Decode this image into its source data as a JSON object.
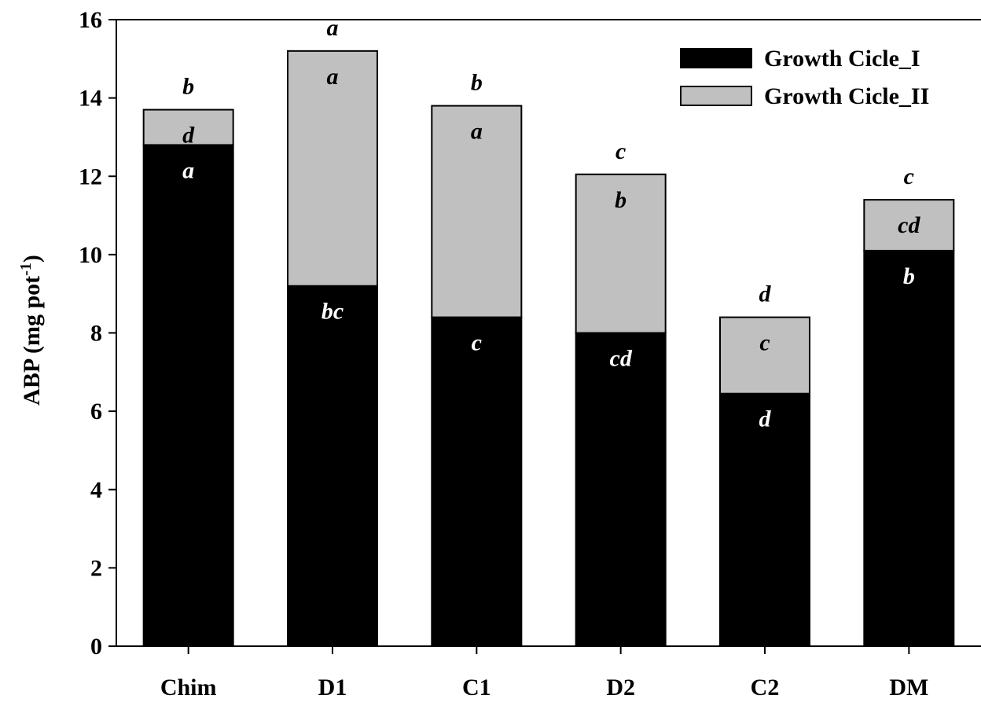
{
  "chart_data": {
    "type": "bar",
    "stacked": true,
    "categories": [
      "Chim",
      "D1",
      "C1",
      "D2",
      "C2",
      "DM"
    ],
    "series": [
      {
        "name": "Growth Cicle_I",
        "color": "#000000",
        "values": [
          12.8,
          9.2,
          8.4,
          8.0,
          6.45,
          10.1
        ],
        "letters": [
          "a",
          "bc",
          "c",
          "cd",
          "d",
          "b"
        ]
      },
      {
        "name": "Growth Cicle_II",
        "color": "#c0c0c0",
        "values": [
          0.9,
          6.0,
          5.4,
          4.05,
          1.95,
          1.3
        ],
        "letters": [
          "d",
          "a",
          "a",
          "b",
          "c",
          "cd"
        ]
      }
    ],
    "total_letters": [
      "b",
      "a",
      "b",
      "c",
      "d",
      "c"
    ],
    "ylabel_main": "ABP (mg pot",
    "ylabel_sup": "-1",
    "ylabel_close": ")",
    "ylim": [
      0,
      16
    ],
    "yticks": [
      "0",
      "2",
      "4",
      "6",
      "8",
      "10",
      "12",
      "14",
      "16"
    ],
    "legend_position": "top-right",
    "grid": false
  }
}
